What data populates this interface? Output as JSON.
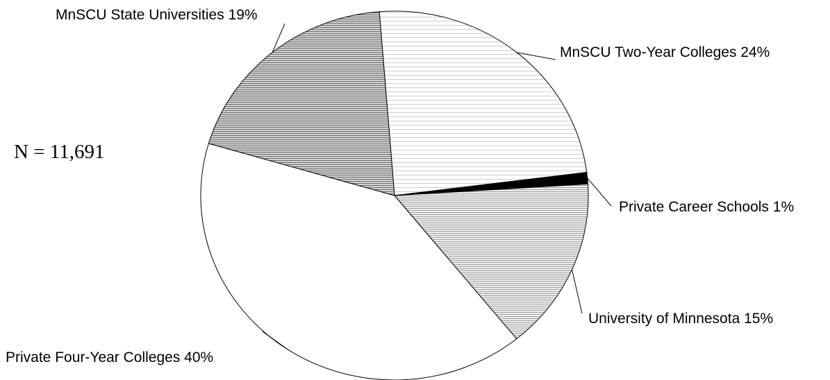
{
  "chart_data": {
    "type": "pie",
    "total_label": "N = 11,691",
    "slices": [
      {
        "label": "MnSCU Two-Year Colleges 24%",
        "value": 24,
        "fill": "stripe-light"
      },
      {
        "label": "Private Career Schools 1%",
        "value": 1,
        "fill": "#000000"
      },
      {
        "label": "University of Minnesota 15%",
        "value": 15,
        "fill": "stripe-medium"
      },
      {
        "label": "Private Four-Year Colleges 40%",
        "value": 40,
        "fill": "#ffffff"
      },
      {
        "label": "MnSCU State Universities 19%",
        "value": 19,
        "fill": "stripe-dark"
      }
    ]
  }
}
